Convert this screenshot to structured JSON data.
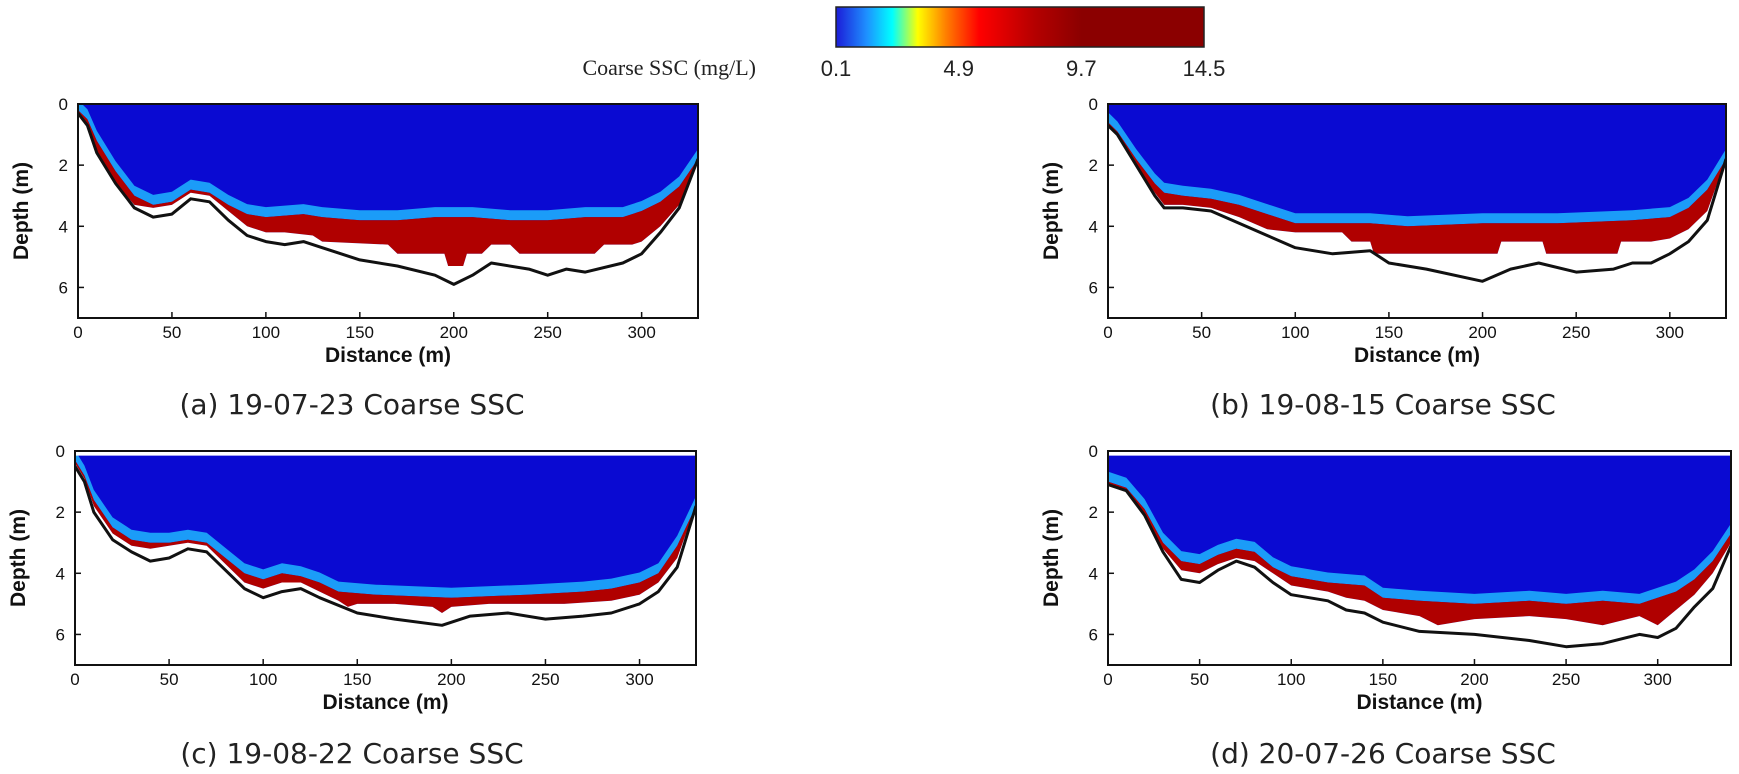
{
  "colorbar": {
    "label": "Coarse SSC (mg/L)",
    "tick_labels": [
      "0.1",
      "4.9",
      "9.7",
      "14.5"
    ],
    "min": 0.1,
    "max": 14.5,
    "stops": [
      {
        "value": 0.1,
        "color": "#1c1cd8"
      },
      {
        "value": 1.3,
        "color": "#1e90ff"
      },
      {
        "value": 2.3,
        "color": "#00ffff"
      },
      {
        "value": 3.3,
        "color": "#ffff00"
      },
      {
        "value": 4.4,
        "color": "#ff7f00"
      },
      {
        "value": 5.7,
        "color": "#ff0000"
      },
      {
        "value": 7.9,
        "color": "#b40000"
      },
      {
        "value": 9.7,
        "color": "#8b0000"
      },
      {
        "value": 14.5,
        "color": "#8b0000"
      }
    ]
  },
  "colors": {
    "background": "#0a0ad2",
    "bed": "#111111",
    "frame": "#111111"
  },
  "chart_data": [
    {
      "type": "heatmap",
      "caption": "(a) 19-07-23 Coarse SSC",
      "xlabel": "Distance (m)",
      "ylabel": "Depth (m)",
      "xlim": [
        0,
        330
      ],
      "ylim": [
        7,
        0
      ],
      "x_ticks": [
        "0",
        "50",
        "100",
        "150",
        "200",
        "250",
        "300"
      ],
      "y_ticks": [
        "0",
        "2",
        "4",
        "6"
      ],
      "surface": 0,
      "bed_profile": [
        [
          0,
          0.3
        ],
        [
          5,
          0.7
        ],
        [
          10,
          1.6
        ],
        [
          20,
          2.6
        ],
        [
          30,
          3.4
        ],
        [
          40,
          3.7
        ],
        [
          50,
          3.6
        ],
        [
          60,
          3.1
        ],
        [
          70,
          3.2
        ],
        [
          80,
          3.8
        ],
        [
          90,
          4.3
        ],
        [
          100,
          4.5
        ],
        [
          110,
          4.6
        ],
        [
          120,
          4.5
        ],
        [
          130,
          4.7
        ],
        [
          150,
          5.1
        ],
        [
          170,
          5.3
        ],
        [
          190,
          5.6
        ],
        [
          200,
          5.9
        ],
        [
          210,
          5.6
        ],
        [
          220,
          5.2
        ],
        [
          240,
          5.4
        ],
        [
          250,
          5.6
        ],
        [
          260,
          5.4
        ],
        [
          270,
          5.5
        ],
        [
          290,
          5.2
        ],
        [
          300,
          4.9
        ],
        [
          310,
          4.2
        ],
        [
          320,
          3.4
        ],
        [
          330,
          1.8
        ]
      ],
      "sediment_top": [
        [
          0,
          0.2
        ],
        [
          5,
          0.5
        ],
        [
          10,
          1.2
        ],
        [
          20,
          2.2
        ],
        [
          30,
          3.0
        ],
        [
          40,
          3.3
        ],
        [
          50,
          3.2
        ],
        [
          60,
          2.8
        ],
        [
          70,
          2.9
        ],
        [
          80,
          3.3
        ],
        [
          90,
          3.6
        ],
        [
          100,
          3.7
        ],
        [
          120,
          3.6
        ],
        [
          130,
          3.7
        ],
        [
          150,
          3.8
        ],
        [
          170,
          3.8
        ],
        [
          190,
          3.7
        ],
        [
          210,
          3.7
        ],
        [
          230,
          3.8
        ],
        [
          250,
          3.8
        ],
        [
          270,
          3.7
        ],
        [
          290,
          3.7
        ],
        [
          300,
          3.5
        ],
        [
          310,
          3.2
        ],
        [
          320,
          2.7
        ],
        [
          330,
          1.8
        ]
      ],
      "sediment_bottom": [
        [
          0,
          0.3
        ],
        [
          5,
          0.7
        ],
        [
          10,
          1.6
        ],
        [
          20,
          2.6
        ],
        [
          30,
          3.3
        ],
        [
          40,
          3.4
        ],
        [
          50,
          3.3
        ],
        [
          60,
          2.9
        ],
        [
          70,
          3.0
        ],
        [
          80,
          3.5
        ],
        [
          90,
          4.0
        ],
        [
          100,
          4.2
        ],
        [
          110,
          4.2
        ],
        [
          125,
          4.3
        ],
        [
          130,
          4.5
        ],
        [
          165,
          4.6
        ],
        [
          170,
          4.9
        ],
        [
          195,
          4.9
        ],
        [
          197,
          5.3
        ],
        [
          205,
          5.3
        ],
        [
          207,
          4.9
        ],
        [
          215,
          4.9
        ],
        [
          220,
          4.6
        ],
        [
          230,
          4.6
        ],
        [
          235,
          4.9
        ],
        [
          275,
          4.9
        ],
        [
          280,
          4.6
        ],
        [
          295,
          4.6
        ],
        [
          300,
          4.5
        ],
        [
          310,
          4.0
        ],
        [
          320,
          3.3
        ],
        [
          330,
          1.8
        ]
      ]
    },
    {
      "type": "heatmap",
      "caption": "(b) 19-08-15 Coarse SSC",
      "xlabel": "Distance (m)",
      "ylabel": "Depth (m)",
      "xlim": [
        0,
        330
      ],
      "ylim": [
        7,
        0
      ],
      "x_ticks": [
        "0",
        "50",
        "100",
        "150",
        "200",
        "250",
        "300"
      ],
      "y_ticks": [
        "0",
        "2",
        "4",
        "6"
      ],
      "surface": 0,
      "bed_profile": [
        [
          0,
          0.7
        ],
        [
          5,
          1.0
        ],
        [
          15,
          2.0
        ],
        [
          25,
          3.0
        ],
        [
          30,
          3.4
        ],
        [
          40,
          3.4
        ],
        [
          55,
          3.5
        ],
        [
          70,
          3.9
        ],
        [
          85,
          4.3
        ],
        [
          100,
          4.7
        ],
        [
          120,
          4.9
        ],
        [
          140,
          4.8
        ],
        [
          150,
          5.2
        ],
        [
          170,
          5.4
        ],
        [
          200,
          5.8
        ],
        [
          215,
          5.4
        ],
        [
          230,
          5.2
        ],
        [
          250,
          5.5
        ],
        [
          270,
          5.4
        ],
        [
          280,
          5.2
        ],
        [
          290,
          5.2
        ],
        [
          300,
          4.9
        ],
        [
          310,
          4.5
        ],
        [
          320,
          3.8
        ],
        [
          330,
          1.8
        ]
      ],
      "sediment_top": [
        [
          0,
          0.6
        ],
        [
          5,
          0.9
        ],
        [
          15,
          1.8
        ],
        [
          25,
          2.6
        ],
        [
          30,
          2.9
        ],
        [
          40,
          3.0
        ],
        [
          55,
          3.1
        ],
        [
          70,
          3.3
        ],
        [
          85,
          3.6
        ],
        [
          100,
          3.9
        ],
        [
          120,
          3.9
        ],
        [
          140,
          3.9
        ],
        [
          160,
          4.0
        ],
        [
          200,
          3.9
        ],
        [
          240,
          3.9
        ],
        [
          280,
          3.8
        ],
        [
          300,
          3.7
        ],
        [
          310,
          3.4
        ],
        [
          320,
          2.8
        ],
        [
          330,
          1.8
        ]
      ],
      "sediment_bottom": [
        [
          0,
          0.7
        ],
        [
          5,
          1.0
        ],
        [
          15,
          2.0
        ],
        [
          25,
          2.9
        ],
        [
          30,
          3.3
        ],
        [
          40,
          3.3
        ],
        [
          55,
          3.4
        ],
        [
          70,
          3.7
        ],
        [
          85,
          4.1
        ],
        [
          100,
          4.2
        ],
        [
          125,
          4.2
        ],
        [
          130,
          4.5
        ],
        [
          140,
          4.5
        ],
        [
          142,
          4.9
        ],
        [
          208,
          4.9
        ],
        [
          210,
          4.5
        ],
        [
          232,
          4.5
        ],
        [
          234,
          4.9
        ],
        [
          272,
          4.9
        ],
        [
          274,
          4.5
        ],
        [
          290,
          4.5
        ],
        [
          300,
          4.4
        ],
        [
          310,
          4.1
        ],
        [
          320,
          3.5
        ],
        [
          330,
          1.8
        ]
      ]
    },
    {
      "type": "heatmap",
      "caption": "(c) 19-08-22 Coarse SSC",
      "xlabel": "Distance (m)",
      "ylabel": "Depth (m)",
      "xlim": [
        0,
        330
      ],
      "ylim": [
        7,
        0
      ],
      "x_ticks": [
        "0",
        "50",
        "100",
        "150",
        "200",
        "250",
        "300"
      ],
      "y_ticks": [
        "0",
        "2",
        "4",
        "6"
      ],
      "surface": 0.15,
      "bed_profile": [
        [
          0,
          0.5
        ],
        [
          5,
          1.0
        ],
        [
          10,
          2.0
        ],
        [
          20,
          2.9
        ],
        [
          30,
          3.3
        ],
        [
          40,
          3.6
        ],
        [
          50,
          3.5
        ],
        [
          60,
          3.2
        ],
        [
          70,
          3.3
        ],
        [
          80,
          3.9
        ],
        [
          90,
          4.5
        ],
        [
          100,
          4.8
        ],
        [
          110,
          4.6
        ],
        [
          120,
          4.5
        ],
        [
          130,
          4.8
        ],
        [
          150,
          5.3
        ],
        [
          170,
          5.5
        ],
        [
          195,
          5.7
        ],
        [
          210,
          5.4
        ],
        [
          230,
          5.3
        ],
        [
          250,
          5.5
        ],
        [
          270,
          5.4
        ],
        [
          285,
          5.3
        ],
        [
          300,
          5.0
        ],
        [
          310,
          4.6
        ],
        [
          320,
          3.8
        ],
        [
          330,
          1.8
        ]
      ],
      "sediment_top": [
        [
          0,
          0.3
        ],
        [
          5,
          0.8
        ],
        [
          10,
          1.6
        ],
        [
          20,
          2.5
        ],
        [
          30,
          2.9
        ],
        [
          40,
          3.0
        ],
        [
          50,
          3.0
        ],
        [
          60,
          2.9
        ],
        [
          70,
          3.0
        ],
        [
          80,
          3.5
        ],
        [
          90,
          4.0
        ],
        [
          100,
          4.2
        ],
        [
          110,
          4.0
        ],
        [
          120,
          4.1
        ],
        [
          130,
          4.3
        ],
        [
          140,
          4.6
        ],
        [
          160,
          4.7
        ],
        [
          200,
          4.8
        ],
        [
          240,
          4.7
        ],
        [
          270,
          4.6
        ],
        [
          285,
          4.5
        ],
        [
          300,
          4.3
        ],
        [
          310,
          4.0
        ],
        [
          320,
          3.1
        ],
        [
          330,
          1.8
        ]
      ],
      "sediment_bottom": [
        [
          0,
          0.4
        ],
        [
          5,
          0.9
        ],
        [
          10,
          1.8
        ],
        [
          20,
          2.7
        ],
        [
          30,
          3.1
        ],
        [
          40,
          3.2
        ],
        [
          50,
          3.1
        ],
        [
          60,
          3.0
        ],
        [
          70,
          3.1
        ],
        [
          80,
          3.7
        ],
        [
          90,
          4.3
        ],
        [
          100,
          4.5
        ],
        [
          110,
          4.3
        ],
        [
          120,
          4.3
        ],
        [
          130,
          4.6
        ],
        [
          140,
          4.9
        ],
        [
          145,
          5.1
        ],
        [
          150,
          5.0
        ],
        [
          170,
          5.0
        ],
        [
          190,
          5.1
        ],
        [
          195,
          5.3
        ],
        [
          200,
          5.1
        ],
        [
          220,
          5.0
        ],
        [
          260,
          5.0
        ],
        [
          285,
          4.9
        ],
        [
          300,
          4.7
        ],
        [
          310,
          4.3
        ],
        [
          320,
          3.5
        ],
        [
          330,
          1.8
        ]
      ]
    },
    {
      "type": "heatmap",
      "caption": "(d) 20-07-26 Coarse SSC",
      "xlabel": "Distance (m)",
      "ylabel": "Depth (m)",
      "xlim": [
        0,
        340
      ],
      "ylim": [
        7,
        0
      ],
      "x_ticks": [
        "0",
        "50",
        "100",
        "150",
        "200",
        "250",
        "300"
      ],
      "y_ticks": [
        "0",
        "2",
        "4",
        "6"
      ],
      "surface": 0.15,
      "bed_profile": [
        [
          0,
          1.1
        ],
        [
          10,
          1.3
        ],
        [
          20,
          2.1
        ],
        [
          30,
          3.3
        ],
        [
          40,
          4.2
        ],
        [
          50,
          4.3
        ],
        [
          60,
          3.9
        ],
        [
          70,
          3.6
        ],
        [
          80,
          3.8
        ],
        [
          90,
          4.3
        ],
        [
          100,
          4.7
        ],
        [
          120,
          4.9
        ],
        [
          130,
          5.2
        ],
        [
          140,
          5.3
        ],
        [
          150,
          5.6
        ],
        [
          170,
          5.9
        ],
        [
          200,
          6.0
        ],
        [
          230,
          6.2
        ],
        [
          250,
          6.4
        ],
        [
          270,
          6.3
        ],
        [
          290,
          6.0
        ],
        [
          300,
          6.1
        ],
        [
          310,
          5.8
        ],
        [
          320,
          5.1
        ],
        [
          330,
          4.5
        ],
        [
          340,
          3.1
        ]
      ],
      "sediment_top": [
        [
          0,
          1.0
        ],
        [
          10,
          1.2
        ],
        [
          20,
          1.9
        ],
        [
          30,
          3.0
        ],
        [
          40,
          3.6
        ],
        [
          50,
          3.7
        ],
        [
          60,
          3.4
        ],
        [
          70,
          3.2
        ],
        [
          80,
          3.3
        ],
        [
          90,
          3.8
        ],
        [
          100,
          4.1
        ],
        [
          120,
          4.3
        ],
        [
          140,
          4.4
        ],
        [
          150,
          4.8
        ],
        [
          170,
          4.9
        ],
        [
          200,
          5.0
        ],
        [
          230,
          4.9
        ],
        [
          250,
          5.0
        ],
        [
          270,
          4.9
        ],
        [
          290,
          5.0
        ],
        [
          300,
          4.8
        ],
        [
          310,
          4.6
        ],
        [
          320,
          4.2
        ],
        [
          330,
          3.6
        ],
        [
          340,
          2.7
        ]
      ],
      "sediment_bottom": [
        [
          0,
          1.1
        ],
        [
          10,
          1.3
        ],
        [
          20,
          2.1
        ],
        [
          30,
          3.2
        ],
        [
          40,
          3.9
        ],
        [
          50,
          4.0
        ],
        [
          60,
          3.7
        ],
        [
          70,
          3.5
        ],
        [
          80,
          3.6
        ],
        [
          90,
          4.0
        ],
        [
          100,
          4.4
        ],
        [
          120,
          4.6
        ],
        [
          130,
          4.8
        ],
        [
          140,
          4.9
        ],
        [
          150,
          5.2
        ],
        [
          170,
          5.4
        ],
        [
          180,
          5.7
        ],
        [
          200,
          5.5
        ],
        [
          230,
          5.4
        ],
        [
          250,
          5.5
        ],
        [
          270,
          5.7
        ],
        [
          290,
          5.4
        ],
        [
          300,
          5.7
        ],
        [
          310,
          5.2
        ],
        [
          320,
          4.7
        ],
        [
          330,
          4.0
        ],
        [
          340,
          3.0
        ]
      ]
    }
  ]
}
